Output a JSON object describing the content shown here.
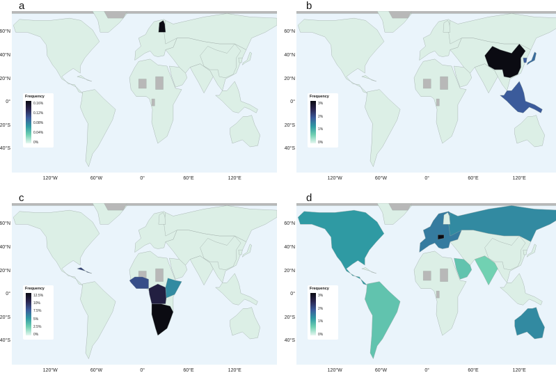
{
  "colors": {
    "ocean": "#eaf4fb",
    "land_low": "#dcefe6",
    "no_data": "#b8b8b8",
    "border": "#9aa7a3",
    "scale": [
      "#e6f7ef",
      "#71d1b2",
      "#2f9aa3",
      "#3b5b9b",
      "#2a2550",
      "#0b0b12"
    ]
  },
  "axes": {
    "lat_labels": [
      "60°N",
      "40°N",
      "20°N",
      "0°",
      "20°S",
      "40°S"
    ],
    "lon_labels": [
      "120°W",
      "60°W",
      "0°",
      "60°E",
      "120°E"
    ]
  },
  "panels": [
    {
      "letter": "a",
      "legend": {
        "title": "Frequency",
        "ticks": [
          "0.16%",
          "0.12%",
          "0.08%",
          "0.04%",
          "0%"
        ]
      },
      "highlights": [
        {
          "region": "Finland",
          "level": 1.0
        }
      ]
    },
    {
      "letter": "b",
      "legend": {
        "title": "Frequency",
        "ticks": [
          "3%",
          "2%",
          "1%",
          "0%"
        ]
      },
      "highlights": [
        {
          "region": "China",
          "level": 1.0
        },
        {
          "region": "Southeast Asia",
          "level": 0.6
        },
        {
          "region": "Japan",
          "level": 0.55
        },
        {
          "region": "Korea",
          "level": 0.6
        }
      ]
    },
    {
      "letter": "c",
      "legend": {
        "title": "Frequency",
        "ticks": [
          "12.5%",
          "10%",
          "7.5%",
          "5%",
          "2.5%",
          "0%"
        ]
      },
      "highlights": [
        {
          "region": "Southern Africa",
          "level": 1.0
        },
        {
          "region": "Central Africa",
          "level": 0.85
        },
        {
          "region": "West Africa",
          "level": 0.65
        },
        {
          "region": "East Africa",
          "level": 0.45
        },
        {
          "region": "Caribbean",
          "level": 0.7
        }
      ]
    },
    {
      "letter": "d",
      "legend": {
        "title": "Frequency",
        "ticks": [
          "3%",
          "2%",
          "1%",
          "0%"
        ]
      },
      "highlights": [
        {
          "region": "North America",
          "level": 0.4
        },
        {
          "region": "Russia",
          "level": 0.45
        },
        {
          "region": "Europe",
          "level": 0.5
        },
        {
          "region": "Central Europe",
          "level": 1.0
        },
        {
          "region": "South America",
          "level": 0.25
        },
        {
          "region": "Australia",
          "level": 0.45
        },
        {
          "region": "Middle East",
          "level": 0.25
        },
        {
          "region": "South Asia",
          "level": 0.2
        }
      ]
    }
  ]
}
